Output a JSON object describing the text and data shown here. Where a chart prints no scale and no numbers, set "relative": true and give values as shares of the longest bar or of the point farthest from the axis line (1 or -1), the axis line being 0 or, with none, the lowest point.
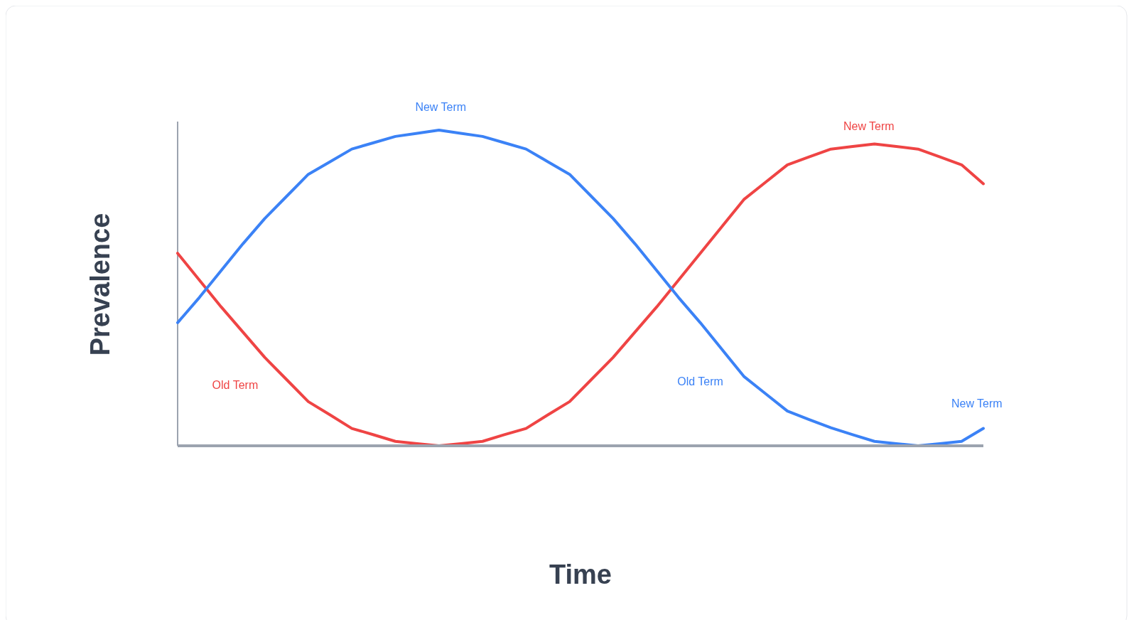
{
  "chart_data": {
    "type": "line",
    "xlabel": "Time",
    "ylabel": "Prevalence",
    "relative": true,
    "categories": [
      null,
      null,
      null,
      null,
      null,
      null,
      null,
      null,
      null,
      null,
      null,
      null,
      null,
      null,
      null,
      null,
      null,
      null,
      null,
      null,
      null,
      null,
      null,
      null,
      null,
      null,
      null,
      null,
      null,
      null,
      null,
      null,
      null,
      null,
      null,
      null,
      null,
      null
    ],
    "series": [
      {
        "color": "#ef4444",
        "values": [
          0.61,
          0.525,
          0.44,
          0.36,
          0.28,
          0.21,
          0.14,
          0.098,
          0.055,
          0.035,
          0.014,
          0.007,
          0,
          0.007,
          0.014,
          0.035,
          0.055,
          0.098,
          0.14,
          0.21,
          0.28,
          0.36,
          0.44,
          0.525,
          0.61,
          0.695,
          0.78,
          0.835,
          0.89,
          0.915,
          0.94,
          0.948,
          0.956,
          0.948,
          0.94,
          0.915,
          0.89,
          0.83
        ]
      },
      {
        "color": "#3b82f6",
        "values": [
          0.39,
          0.47,
          0.555,
          0.64,
          0.72,
          0.79,
          0.86,
          0.9,
          0.94,
          0.96,
          0.98,
          0.99,
          1,
          0.99,
          0.98,
          0.96,
          0.94,
          0.9,
          0.86,
          0.79,
          0.72,
          0.64,
          0.555,
          0.47,
          0.39,
          0.305,
          0.22,
          0.165,
          0.11,
          0.083,
          0.057,
          0.035,
          0.014,
          0.007,
          0,
          0.007,
          0.014,
          0.055
        ]
      }
    ],
    "annotations": [
      "New Term",
      "Old Term",
      "New Term",
      "Old Term",
      "New Term"
    ]
  }
}
